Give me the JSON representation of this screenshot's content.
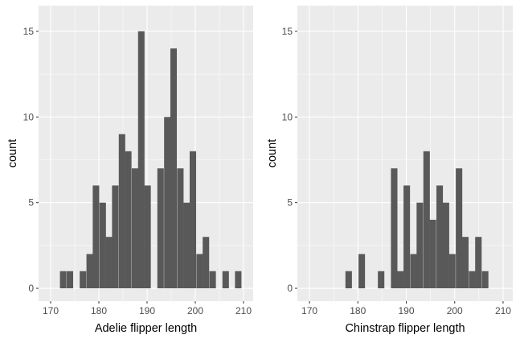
{
  "chart_data": [
    {
      "type": "bar",
      "subtype": "histogram",
      "xlabel": "Adelie flipper length",
      "ylabel": "count",
      "xlim": [
        167.5,
        212
      ],
      "ylim": [
        -0.75,
        16.5
      ],
      "x_ticks": [
        170,
        180,
        190,
        200,
        210
      ],
      "y_ticks": [
        0,
        5,
        10,
        15
      ],
      "bin_width": 1.34,
      "bins": [
        {
          "x": 172.6,
          "count": 1
        },
        {
          "x": 174.0,
          "count": 1
        },
        {
          "x": 176.7,
          "count": 1
        },
        {
          "x": 178.1,
          "count": 2
        },
        {
          "x": 179.4,
          "count": 6
        },
        {
          "x": 180.8,
          "count": 5
        },
        {
          "x": 182.1,
          "count": 3
        },
        {
          "x": 183.4,
          "count": 6
        },
        {
          "x": 184.8,
          "count": 9
        },
        {
          "x": 186.1,
          "count": 8
        },
        {
          "x": 187.5,
          "count": 7
        },
        {
          "x": 188.8,
          "count": 15
        },
        {
          "x": 190.1,
          "count": 6
        },
        {
          "x": 192.8,
          "count": 7
        },
        {
          "x": 194.2,
          "count": 10
        },
        {
          "x": 195.5,
          "count": 14
        },
        {
          "x": 196.9,
          "count": 7
        },
        {
          "x": 198.2,
          "count": 5
        },
        {
          "x": 199.5,
          "count": 8
        },
        {
          "x": 200.9,
          "count": 2
        },
        {
          "x": 202.2,
          "count": 3
        },
        {
          "x": 203.6,
          "count": 1
        },
        {
          "x": 206.3,
          "count": 1
        },
        {
          "x": 208.9,
          "count": 1
        }
      ],
      "grid": true
    },
    {
      "type": "bar",
      "subtype": "histogram",
      "xlabel": "Chinstrap flipper length",
      "ylabel": "count",
      "xlim": [
        167.5,
        212
      ],
      "ylim": [
        -0.75,
        16.5
      ],
      "x_ticks": [
        170,
        180,
        190,
        200,
        210
      ],
      "y_ticks": [
        0,
        5,
        10,
        15
      ],
      "bin_width": 1.34,
      "bins": [
        {
          "x": 178.1,
          "count": 1
        },
        {
          "x": 180.8,
          "count": 2
        },
        {
          "x": 184.8,
          "count": 1
        },
        {
          "x": 187.5,
          "count": 7
        },
        {
          "x": 188.8,
          "count": 1
        },
        {
          "x": 190.1,
          "count": 6
        },
        {
          "x": 191.5,
          "count": 2
        },
        {
          "x": 192.8,
          "count": 5
        },
        {
          "x": 194.2,
          "count": 8
        },
        {
          "x": 195.5,
          "count": 4
        },
        {
          "x": 196.9,
          "count": 6
        },
        {
          "x": 198.2,
          "count": 5
        },
        {
          "x": 199.5,
          "count": 2
        },
        {
          "x": 200.9,
          "count": 7
        },
        {
          "x": 202.2,
          "count": 3
        },
        {
          "x": 203.6,
          "count": 1
        },
        {
          "x": 204.9,
          "count": 3
        },
        {
          "x": 206.3,
          "count": 1
        }
      ],
      "grid": true
    }
  ]
}
